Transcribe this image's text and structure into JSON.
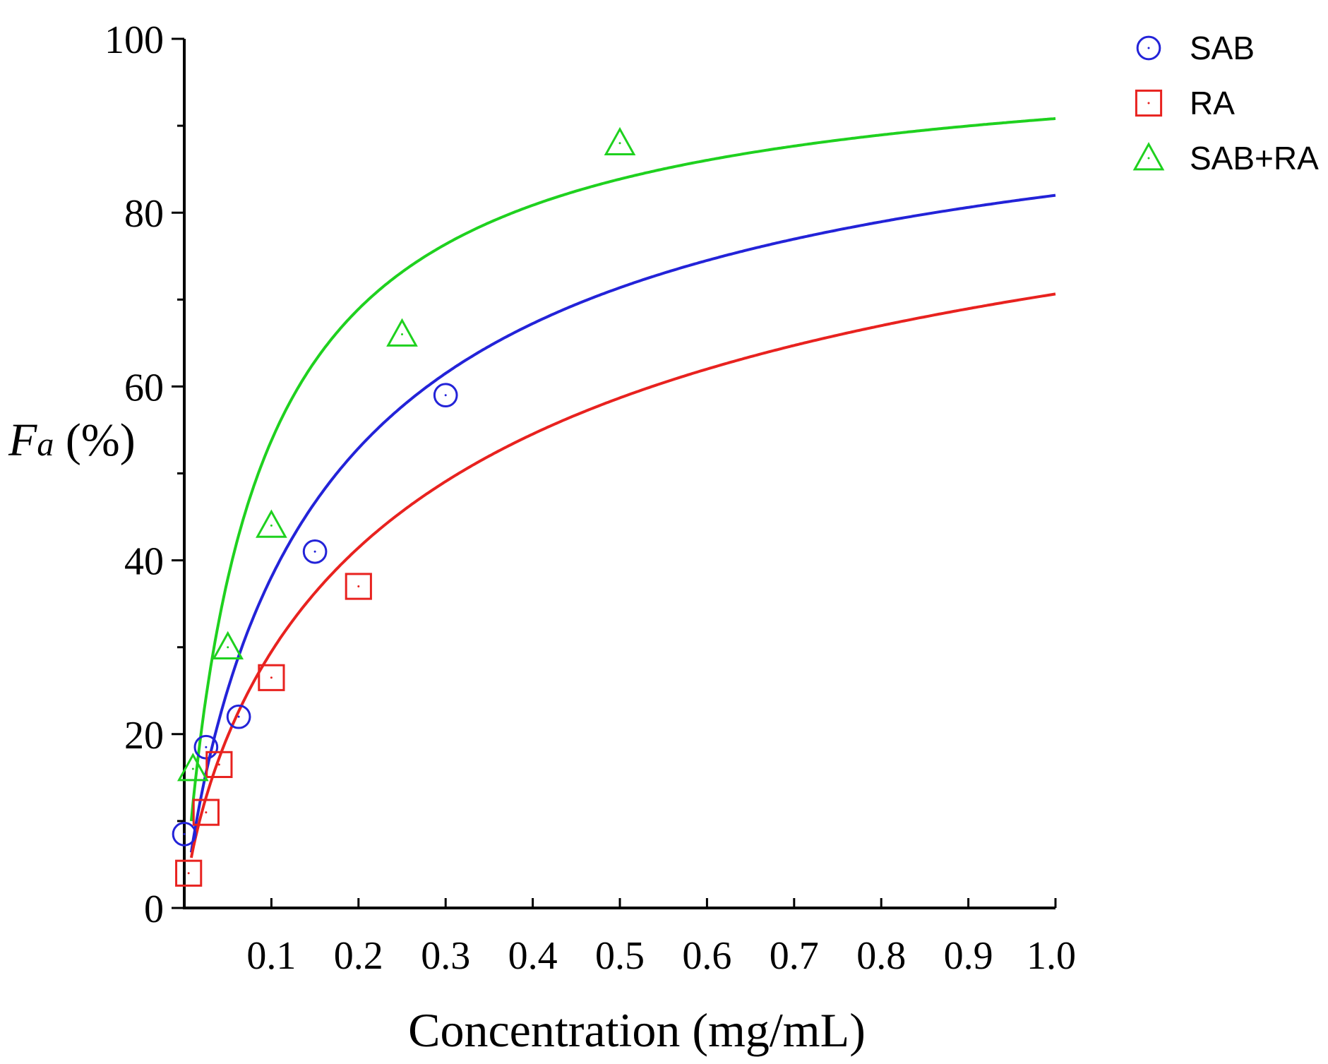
{
  "chart_data": {
    "type": "scatter",
    "title": "",
    "xlabel": "Concentration (mg/mL)",
    "ylabel_main": "F",
    "ylabel_sub": "a",
    "ylabel_suffix": " (%)",
    "xlim": [
      0,
      1.0
    ],
    "ylim": [
      0,
      100
    ],
    "x_ticks": [
      0.1,
      0.2,
      0.3,
      0.4,
      0.5,
      0.6,
      0.7,
      0.8,
      0.9,
      1.0
    ],
    "x_tick_labels": [
      "0.1",
      "0.2",
      "0.3",
      "0.4",
      "0.5",
      "0.6",
      "0.7",
      "0.8",
      "0.9",
      "1.0"
    ],
    "y_major_ticks": [
      0,
      20,
      40,
      60,
      80,
      100
    ],
    "y_tick_labels": [
      "0",
      "20",
      "40",
      "60",
      "80",
      "100"
    ],
    "y_minor_ticks": [
      10,
      30,
      50,
      70,
      90
    ],
    "grid": false,
    "legend_position": "top-right",
    "series": [
      {
        "name": "SAB",
        "color": "#2323d8",
        "marker": "circle",
        "points": [
          [
            0.0,
            8.5
          ],
          [
            0.025,
            18.5
          ],
          [
            0.0625,
            22
          ],
          [
            0.15,
            41
          ],
          [
            0.3,
            59
          ]
        ],
        "fit": {
          "dm": 0.175,
          "m": 0.87
        }
      },
      {
        "name": "RA",
        "color": "#e8221f",
        "marker": "square",
        "points": [
          [
            0.005,
            4
          ],
          [
            0.025,
            11
          ],
          [
            0.04,
            16.5
          ],
          [
            0.1,
            26.5
          ],
          [
            0.2,
            37
          ]
        ],
        "fit": {
          "dm": 0.315,
          "m": 0.76
        }
      },
      {
        "name": "SAB+RA",
        "color": "#1fd11f",
        "marker": "triangle",
        "points": [
          [
            0.01,
            16
          ],
          [
            0.05,
            30
          ],
          [
            0.1,
            44
          ],
          [
            0.25,
            66
          ],
          [
            0.5,
            88
          ]
        ],
        "fit": {
          "dm": 0.085,
          "m": 0.93
        }
      }
    ]
  }
}
